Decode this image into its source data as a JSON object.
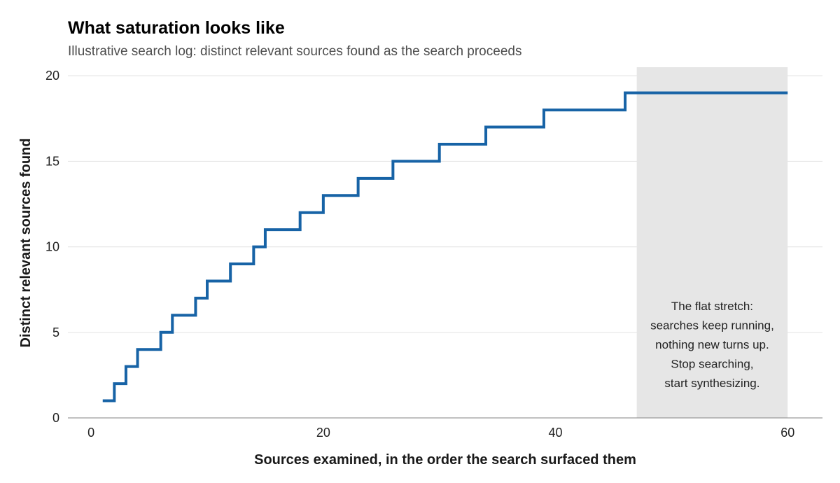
{
  "chart_data": {
    "type": "line",
    "step": true,
    "title": "What saturation looks like",
    "subtitle": "Illustrative search log: distinct relevant sources found as the search proceeds",
    "xlabel": "Sources examined, in the order the search surfaced them",
    "ylabel": "Distinct relevant sources found",
    "xlim": [
      -2,
      63
    ],
    "ylim": [
      0,
      20.5
    ],
    "xticks": [
      0,
      20,
      40,
      60
    ],
    "yticks": [
      0,
      5,
      10,
      15,
      20
    ],
    "grid": "horizontal",
    "series": [
      {
        "color": "#1763a6",
        "points": [
          [
            1,
            1
          ],
          [
            2,
            2
          ],
          [
            3,
            3
          ],
          [
            4,
            4
          ],
          [
            6,
            5
          ],
          [
            7,
            6
          ],
          [
            9,
            7
          ],
          [
            10,
            8
          ],
          [
            12,
            9
          ],
          [
            14,
            10
          ],
          [
            15,
            11
          ],
          [
            18,
            12
          ],
          [
            20,
            13
          ],
          [
            23,
            14
          ],
          [
            26,
            15
          ],
          [
            30,
            16
          ],
          [
            34,
            17
          ],
          [
            39,
            18
          ],
          [
            46,
            19
          ],
          [
            60,
            19
          ]
        ]
      }
    ],
    "shaded_region": {
      "x_start": 47,
      "x_end": 60,
      "color": "#e6e6e6"
    },
    "annotation": {
      "lines": [
        "The flat stretch:",
        "searches keep running,",
        "nothing new turns up.",
        "Stop searching,",
        "start synthesizing."
      ],
      "x": 53.5,
      "y": 6.3
    }
  }
}
